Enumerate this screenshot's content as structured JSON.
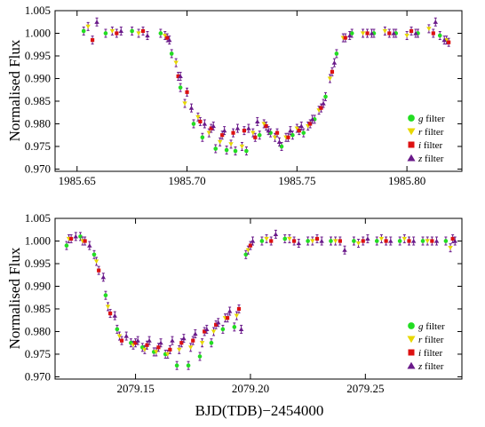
{
  "colors": {
    "g": "#22dd22",
    "r": "#e8d800",
    "i": "#dd1111",
    "z": "#6a1a8a",
    "errorbar": "#6a1a8a",
    "axis": "#000000"
  },
  "chart_data": [
    {
      "type": "scatter",
      "panel": "top",
      "ylabel": "Normalised Flux",
      "xlim": [
        1985.64,
        1985.825
      ],
      "ylim": [
        0.9695,
        1.005
      ],
      "xticks": [
        "1985.65",
        "1985.70",
        "1985.75",
        "1985.80"
      ],
      "yticks": [
        "0.970",
        "0.975",
        "0.980",
        "0.985",
        "0.990",
        "0.995",
        "1.000",
        "1.005"
      ],
      "legend": {
        "position": "bottom-right",
        "entries": [
          {
            "key": "g",
            "italic": "g",
            "text": " filter",
            "marker": "circle"
          },
          {
            "key": "r",
            "italic": "r",
            "text": " filter",
            "marker": "triangle-down"
          },
          {
            "key": "i",
            "italic": "i",
            "text": " filter",
            "marker": "square"
          },
          {
            "key": "z",
            "italic": "z",
            "text": " filter",
            "marker": "triangle-up"
          }
        ]
      },
      "series": [
        {
          "filter": "g",
          "x": [
            1985.653,
            1985.663,
            1985.675,
            1985.688,
            1985.693,
            1985.697,
            1985.703,
            1985.707,
            1985.713,
            1985.718,
            1985.722,
            1985.727,
            1985.733,
            1985.738,
            1985.743,
            1985.748,
            1985.753,
            1985.758,
            1985.763,
            1985.768,
            1985.775,
            1985.785,
            1985.795,
            1985.805,
            1985.815
          ],
          "y": [
            1.0005,
            1.0,
            1.0005,
            1.0,
            0.9955,
            0.988,
            0.98,
            0.977,
            0.9745,
            0.9742,
            0.974,
            0.974,
            0.9775,
            0.978,
            0.975,
            0.9775,
            0.978,
            0.981,
            0.986,
            0.9955,
            1.0,
            1.0,
            1.0,
            1.0,
            0.9995
          ]
        },
        {
          "filter": "r",
          "x": [
            1985.655,
            1985.666,
            1985.678,
            1985.69,
            1985.695,
            1985.699,
            1985.705,
            1985.71,
            1985.715,
            1985.72,
            1985.725,
            1985.73,
            1985.735,
            1985.74,
            1985.745,
            1985.75,
            1985.755,
            1985.76,
            1985.765,
            1985.771,
            1985.78,
            1985.79,
            1985.8,
            1985.81,
            1985.818
          ],
          "y": [
            1.0015,
            1.0005,
            1.0,
            0.9995,
            0.9935,
            0.9845,
            0.9815,
            0.978,
            0.976,
            0.9755,
            0.975,
            0.978,
            0.98,
            0.977,
            0.977,
            0.979,
            0.9795,
            0.983,
            0.99,
            0.999,
            1.0,
            1.0005,
            0.9995,
            1.001,
            0.9985
          ]
        },
        {
          "filter": "i",
          "x": [
            1985.657,
            1985.668,
            1985.68,
            1985.691,
            1985.696,
            1985.7,
            1985.706,
            1985.711,
            1985.716,
            1985.721,
            1985.726,
            1985.731,
            1985.736,
            1985.741,
            1985.746,
            1985.751,
            1985.756,
            1985.761,
            1985.766,
            1985.772,
            1985.782,
            1985.792,
            1985.802,
            1985.812,
            1985.819
          ],
          "y": [
            0.9985,
            1.0,
            1.0005,
            0.999,
            0.9905,
            0.987,
            0.9805,
            0.979,
            0.9775,
            0.978,
            0.9785,
            0.977,
            0.9795,
            0.978,
            0.977,
            0.9785,
            0.98,
            0.9835,
            0.9915,
            0.999,
            1.0,
            1.0,
            1.0005,
            1.0,
            0.998
          ]
        },
        {
          "filter": "z",
          "x": [
            1985.659,
            1985.67,
            1985.682,
            1985.692,
            1985.697,
            1985.702,
            1985.708,
            1985.712,
            1985.717,
            1985.723,
            1985.728,
            1985.732,
            1985.737,
            1985.742,
            1985.747,
            1985.752,
            1985.757,
            1985.762,
            1985.767,
            1985.774,
            1985.784,
            1985.794,
            1985.804,
            1985.813,
            1985.817
          ],
          "y": [
            1.0025,
            1.0005,
            0.9995,
            0.9985,
            0.9905,
            0.9835,
            0.98,
            0.9795,
            0.9785,
            0.979,
            0.979,
            0.9805,
            0.9785,
            0.976,
            0.9785,
            0.9795,
            0.981,
            0.9845,
            0.9935,
            0.9995,
            1.0,
            1.0,
            1.0,
            1.0025,
            0.9985
          ]
        }
      ]
    },
    {
      "type": "scatter",
      "panel": "bottom",
      "ylabel": "Normalised Flux",
      "xlabel": "BJD(TDB)−2454000",
      "xlim": [
        2079.115,
        2079.292
      ],
      "ylim": [
        0.9695,
        1.005
      ],
      "xticks": [
        "2079.15",
        "2079.20",
        "2079.25"
      ],
      "yticks": [
        "0.970",
        "0.975",
        "0.980",
        "0.985",
        "0.990",
        "0.995",
        "1.000",
        "1.005"
      ],
      "legend": {
        "position": "bottom-right",
        "entries": [
          {
            "key": "g",
            "italic": "g",
            "text": " filter",
            "marker": "circle"
          },
          {
            "key": "r",
            "italic": "r",
            "text": " filter",
            "marker": "triangle-down"
          },
          {
            "key": "i",
            "italic": "i",
            "text": " filter",
            "marker": "square"
          },
          {
            "key": "z",
            "italic": "z",
            "text": " filter",
            "marker": "triangle-up"
          }
        ]
      },
      "series": [
        {
          "filter": "g",
          "x": [
            2079.12,
            2079.126,
            2079.132,
            2079.137,
            2079.142,
            2079.148,
            2079.153,
            2079.158,
            2079.163,
            2079.168,
            2079.173,
            2079.178,
            2079.183,
            2079.188,
            2079.193,
            2079.198,
            2079.205,
            2079.215,
            2079.225,
            2079.235,
            2079.245,
            2079.255,
            2079.265,
            2079.275,
            2079.285
          ],
          "y": [
            0.999,
            1.001,
            0.997,
            0.988,
            0.9805,
            0.9775,
            0.9765,
            0.9755,
            0.975,
            0.9725,
            0.9725,
            0.9745,
            0.9775,
            0.9805,
            0.981,
            0.997,
            1.0,
            1.0005,
            1.0,
            1.0,
            1.0,
            1.0,
            1.0,
            1.0,
            1.0
          ]
        },
        {
          "filter": "r",
          "x": [
            2079.121,
            2079.127,
            2079.133,
            2079.138,
            2079.143,
            2079.149,
            2079.154,
            2079.159,
            2079.164,
            2079.169,
            2079.174,
            2079.179,
            2079.184,
            2079.189,
            2079.194,
            2079.199,
            2079.207,
            2079.217,
            2079.227,
            2079.237,
            2079.247,
            2079.257,
            2079.267,
            2079.277,
            2079.287
          ],
          "y": [
            1.0005,
            1.0,
            0.9955,
            0.9855,
            0.979,
            0.977,
            0.976,
            0.9755,
            0.975,
            0.976,
            0.9765,
            0.9775,
            0.98,
            0.983,
            0.9835,
            0.998,
            1.0005,
            1.0005,
            1.0,
            1.0,
            0.9995,
            1.0005,
            1.0005,
            1.0,
            0.9985
          ]
        },
        {
          "filter": "i",
          "x": [
            2079.122,
            2079.128,
            2079.134,
            2079.139,
            2079.144,
            2079.15,
            2079.155,
            2079.16,
            2079.165,
            2079.17,
            2079.175,
            2079.18,
            2079.185,
            2079.19,
            2079.195,
            2079.2,
            2079.209,
            2079.219,
            2079.229,
            2079.239,
            2079.249,
            2079.259,
            2079.269,
            2079.279,
            2079.288
          ],
          "y": [
            1.0005,
            1.0,
            0.9935,
            0.984,
            0.978,
            0.9775,
            0.977,
            0.9765,
            0.976,
            0.9775,
            0.978,
            0.98,
            0.9815,
            0.983,
            0.985,
            0.999,
            1.0,
            1.0,
            1.0005,
            1.0,
            1.0,
            1.0,
            1.0,
            1.0,
            1.0005
          ]
        },
        {
          "filter": "z",
          "x": [
            2079.124,
            2079.13,
            2079.136,
            2079.141,
            2079.146,
            2079.151,
            2079.156,
            2079.161,
            2079.166,
            2079.171,
            2079.176,
            2079.181,
            2079.186,
            2079.191,
            2079.196,
            2079.201,
            2079.211,
            2079.221,
            2079.231,
            2079.241,
            2079.251,
            2079.261,
            2079.271,
            2079.281,
            2079.289
          ],
          "y": [
            1.001,
            0.999,
            0.992,
            0.9835,
            0.979,
            0.978,
            0.978,
            0.9775,
            0.978,
            0.9785,
            0.9795,
            0.9805,
            0.982,
            0.9845,
            0.9805,
            1.0,
            1.0015,
            0.9995,
            1.0,
            0.998,
            1.0005,
            1.0,
            1.0,
            1.0,
            1.0
          ]
        }
      ]
    }
  ]
}
